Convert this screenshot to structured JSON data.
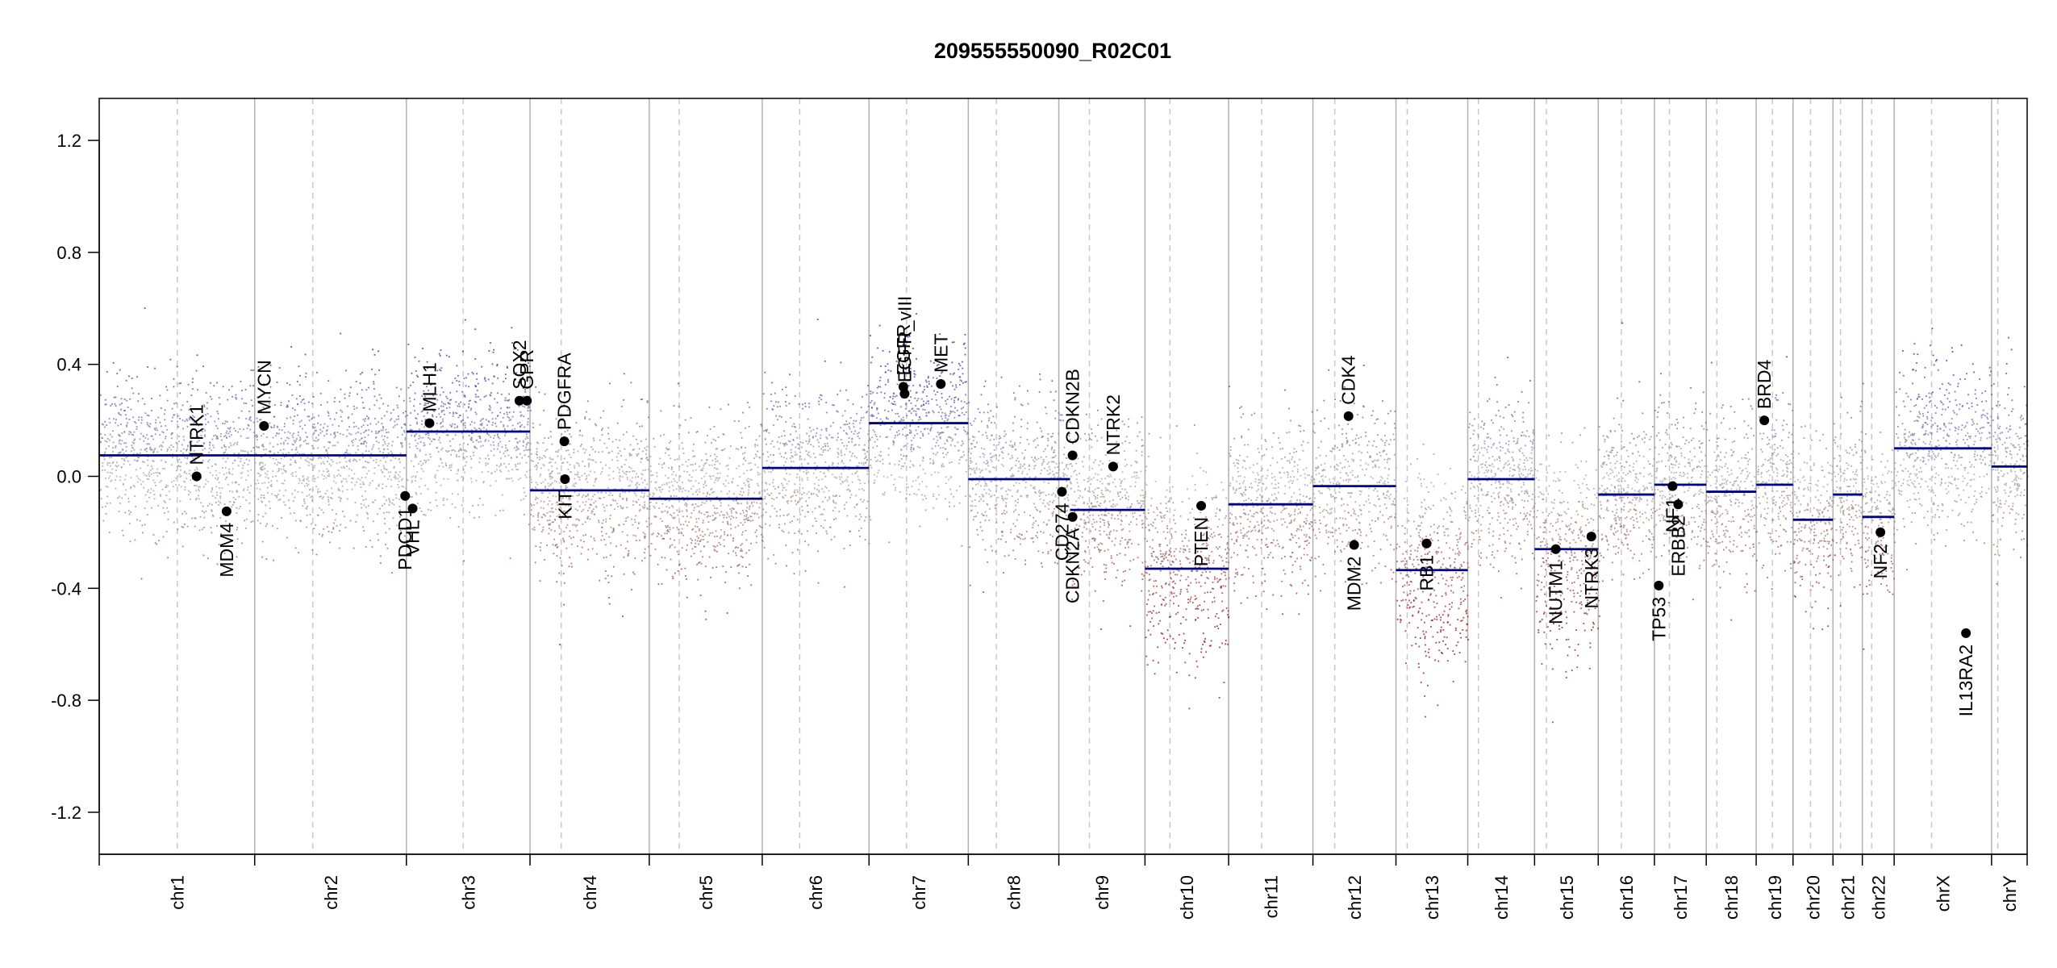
{
  "chart_data": {
    "type": "scatter",
    "title": "209555550090_R02C01",
    "xlabel": "",
    "ylabel": "",
    "ylim": [
      -1.35,
      1.35
    ],
    "y_ticks": [
      -1.2,
      -0.8,
      -0.4,
      0.0,
      0.4,
      0.8,
      1.2
    ],
    "y_tick_labels": [
      "-1.2",
      "-0.8",
      "-0.4",
      "0.0",
      "0.4",
      "0.8",
      "1.2"
    ],
    "grid": false,
    "colors": {
      "gain": "#2b2bb0",
      "neutral": "#aaaaaa",
      "loss": "#a01010",
      "segment": "#00008b",
      "chrom_boundary": "#b0b0b0",
      "centromere": "#c8c8c8",
      "gene_point": "#000000"
    },
    "chromosomes": [
      {
        "name": "chr1",
        "start": 0,
        "end": 249,
        "cen": 125
      },
      {
        "name": "chr2",
        "start": 249,
        "end": 492,
        "cen": 93
      },
      {
        "name": "chr3",
        "start": 492,
        "end": 690,
        "cen": 91
      },
      {
        "name": "chr4",
        "start": 690,
        "end": 881,
        "cen": 50
      },
      {
        "name": "chr5",
        "start": 881,
        "end": 1062,
        "cen": 48
      },
      {
        "name": "chr6",
        "start": 1062,
        "end": 1233,
        "cen": 60
      },
      {
        "name": "chr7",
        "start": 1233,
        "end": 1392,
        "cen": 60
      },
      {
        "name": "chr8",
        "start": 1392,
        "end": 1537,
        "cen": 45
      },
      {
        "name": "chr9",
        "start": 1537,
        "end": 1675,
        "cen": 49
      },
      {
        "name": "chr10",
        "start": 1675,
        "end": 1809,
        "cen": 40
      },
      {
        "name": "chr11",
        "start": 1809,
        "end": 1944,
        "cen": 53
      },
      {
        "name": "chr12",
        "start": 1944,
        "end": 2077,
        "cen": 35
      },
      {
        "name": "chr13",
        "start": 2077,
        "end": 2192,
        "cen": 18
      },
      {
        "name": "chr14",
        "start": 2192,
        "end": 2299,
        "cen": 17
      },
      {
        "name": "chr15",
        "start": 2299,
        "end": 2401,
        "cen": 19
      },
      {
        "name": "chr16",
        "start": 2401,
        "end": 2491,
        "cen": 37
      },
      {
        "name": "chr17",
        "start": 2491,
        "end": 2574,
        "cen": 24
      },
      {
        "name": "chr18",
        "start": 2574,
        "end": 2654,
        "cen": 17
      },
      {
        "name": "chr19",
        "start": 2654,
        "end": 2713,
        "cen": 26
      },
      {
        "name": "chr20",
        "start": 2713,
        "end": 2777,
        "cen": 28
      },
      {
        "name": "chr21",
        "start": 2777,
        "end": 2824,
        "cen": 12
      },
      {
        "name": "chr22",
        "start": 2824,
        "end": 2875,
        "cen": 15
      },
      {
        "name": "chrX",
        "start": 2875,
        "end": 3031,
        "cen": 60
      },
      {
        "name": "chrY",
        "start": 3031,
        "end": 3088,
        "cen": 10
      }
    ],
    "segments": [
      {
        "x0": 0,
        "x1": 492,
        "y": 0.075
      },
      {
        "x0": 492,
        "x1": 690,
        "y": 0.16
      },
      {
        "x0": 690,
        "x1": 881,
        "y": -0.05
      },
      {
        "x0": 881,
        "x1": 1062,
        "y": -0.08
      },
      {
        "x0": 1062,
        "x1": 1233,
        "y": 0.03
      },
      {
        "x0": 1233,
        "x1": 1392,
        "y": 0.19
      },
      {
        "x0": 1392,
        "x1": 1537,
        "y": -0.01
      },
      {
        "x0": 1537,
        "x1": 1555,
        "y": -0.01
      },
      {
        "x0": 1555,
        "x1": 1675,
        "y": -0.12
      },
      {
        "x0": 1675,
        "x1": 1809,
        "y": -0.33
      },
      {
        "x0": 1809,
        "x1": 1944,
        "y": -0.1
      },
      {
        "x0": 1944,
        "x1": 2077,
        "y": -0.035
      },
      {
        "x0": 2077,
        "x1": 2192,
        "y": -0.335
      },
      {
        "x0": 2192,
        "x1": 2299,
        "y": -0.01
      },
      {
        "x0": 2299,
        "x1": 2401,
        "y": -0.26
      },
      {
        "x0": 2401,
        "x1": 2491,
        "y": -0.065
      },
      {
        "x0": 2491,
        "x1": 2574,
        "y": -0.03
      },
      {
        "x0": 2574,
        "x1": 2654,
        "y": -0.055
      },
      {
        "x0": 2654,
        "x1": 2713,
        "y": -0.03
      },
      {
        "x0": 2713,
        "x1": 2777,
        "y": -0.155
      },
      {
        "x0": 2777,
        "x1": 2824,
        "y": -0.065
      },
      {
        "x0": 2824,
        "x1": 2875,
        "y": -0.145
      },
      {
        "x0": 2875,
        "x1": 3031,
        "y": 0.1
      },
      {
        "x0": 3031,
        "x1": 3088,
        "y": 0.035
      }
    ],
    "genes": [
      {
        "name": "NTRK1",
        "x": 156,
        "y": 0.0,
        "side": "above"
      },
      {
        "name": "MDM4",
        "x": 204,
        "y": -0.125,
        "side": "below"
      },
      {
        "name": "MYCN",
        "x": 264,
        "y": 0.18,
        "side": "above"
      },
      {
        "name": "PDCD1",
        "x": 490,
        "y": -0.07,
        "side": "below"
      },
      {
        "name": "VHL",
        "x": 502,
        "y": -0.115,
        "side": "below"
      },
      {
        "name": "MLH1",
        "x": 529,
        "y": 0.19,
        "side": "above"
      },
      {
        "name": "SOX2",
        "x": 673,
        "y": 0.27,
        "side": "above"
      },
      {
        "name": "GPR",
        "x": 685,
        "y": 0.27,
        "side": "above"
      },
      {
        "name": "PDGFRA",
        "x": 745,
        "y": 0.125,
        "side": "above"
      },
      {
        "name": "KIT",
        "x": 746,
        "y": -0.01,
        "side": "below"
      },
      {
        "name": "EGFR",
        "x": 1288,
        "y": 0.32,
        "side": "above"
      },
      {
        "name": "EGFR_vIII",
        "x": 1290,
        "y": 0.295,
        "side": "above"
      },
      {
        "name": "MET",
        "x": 1348,
        "y": 0.33,
        "side": "above"
      },
      {
        "name": "CD274",
        "x": 1542,
        "y": -0.055,
        "side": "below"
      },
      {
        "name": "CDKN2A",
        "x": 1559,
        "y": -0.145,
        "side": "below"
      },
      {
        "name": "CDKN2B",
        "x": 1559,
        "y": 0.075,
        "side": "above"
      },
      {
        "name": "NTRK2",
        "x": 1624,
        "y": 0.035,
        "side": "above"
      },
      {
        "name": "PTEN",
        "x": 1765,
        "y": -0.105,
        "side": "below"
      },
      {
        "name": "CDK4",
        "x": 2001,
        "y": 0.215,
        "side": "above"
      },
      {
        "name": "MDM2",
        "x": 2010,
        "y": -0.245,
        "side": "below"
      },
      {
        "name": "RB1",
        "x": 2126,
        "y": -0.24,
        "side": "below"
      },
      {
        "name": "NUTM1",
        "x": 2333,
        "y": -0.26,
        "side": "below"
      },
      {
        "name": "NTRK3",
        "x": 2390,
        "y": -0.215,
        "side": "below"
      },
      {
        "name": "TP53",
        "x": 2498,
        "y": -0.39,
        "side": "below"
      },
      {
        "name": "NF1",
        "x": 2520,
        "y": -0.035,
        "side": "below"
      },
      {
        "name": "ERBB2",
        "x": 2529,
        "y": -0.1,
        "side": "below"
      },
      {
        "name": "BRD4",
        "x": 2667,
        "y": 0.2,
        "side": "above"
      },
      {
        "name": "NF2",
        "x": 2853,
        "y": -0.2,
        "side": "below"
      },
      {
        "name": "IL13RA2",
        "x": 2990,
        "y": -0.56,
        "side": "below"
      }
    ]
  }
}
